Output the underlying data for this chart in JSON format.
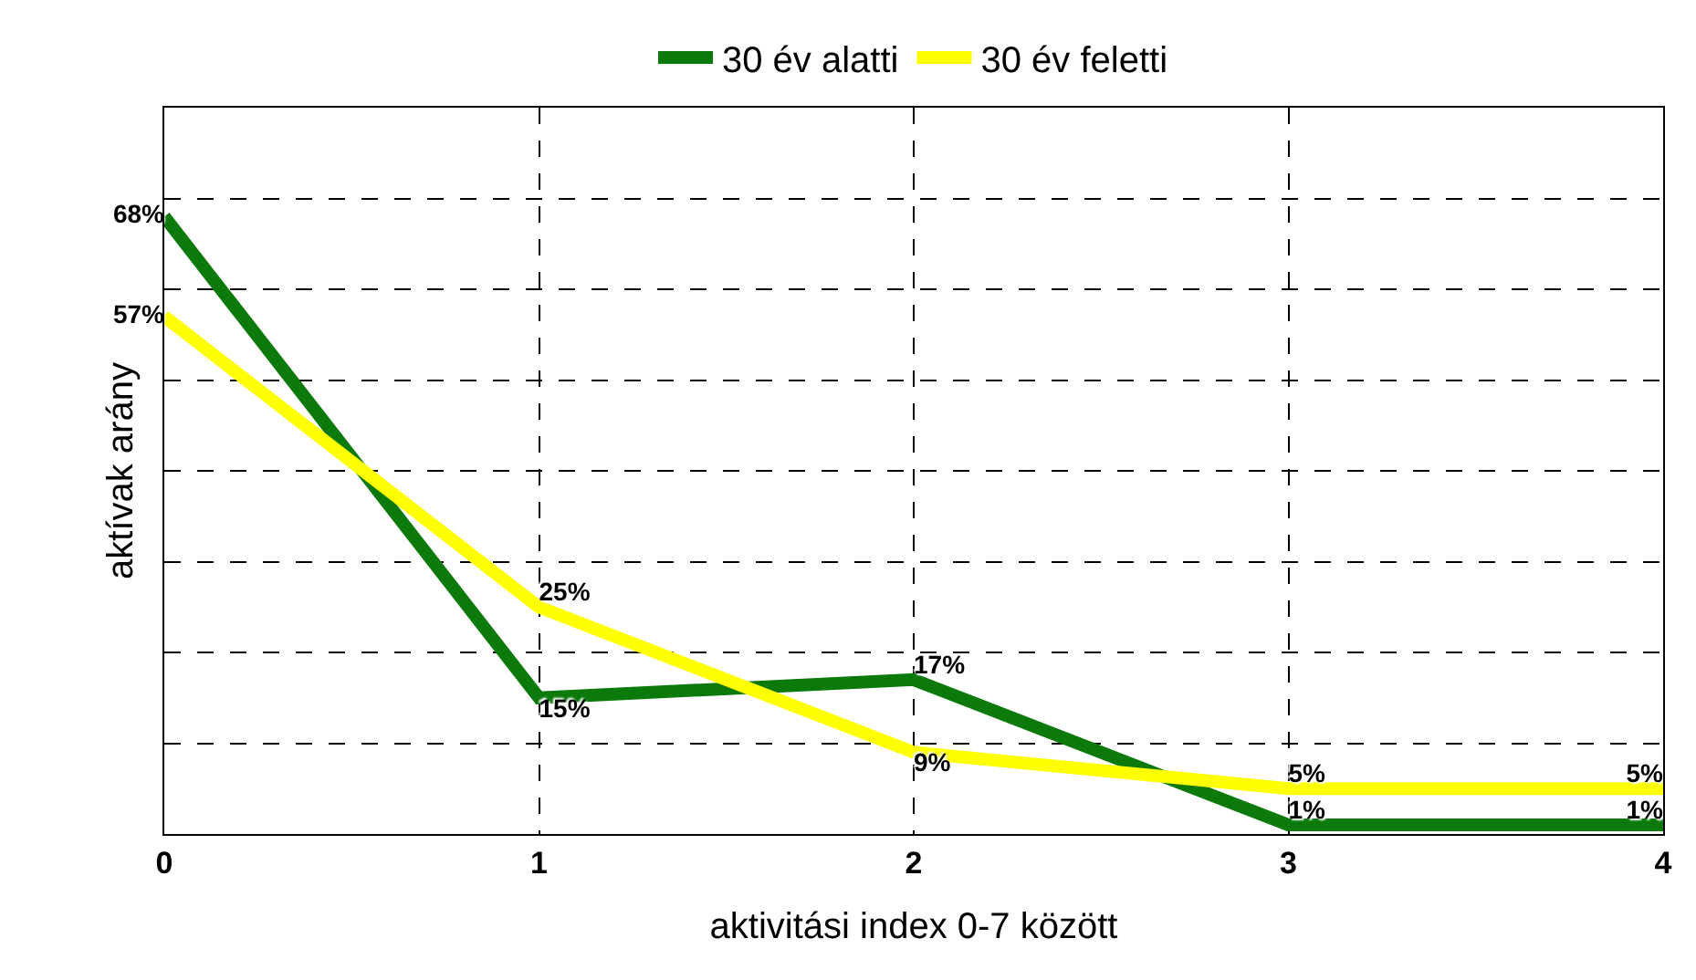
{
  "chart_data": {
    "type": "line",
    "xlabel": "aktivitási index 0-7 között",
    "ylabel": "aktívak arány",
    "x": [
      0,
      1,
      2,
      3,
      4
    ],
    "series": [
      {
        "name": "30 év alatti",
        "color": "#0b7a0b",
        "values": [
          68,
          15,
          17,
          1,
          1
        ],
        "value_labels": [
          "68%",
          "15%",
          "17%",
          "1%",
          "1%"
        ]
      },
      {
        "name": "30 év feletti",
        "color": "#ffff00",
        "values": [
          57,
          25,
          9,
          5,
          5
        ],
        "value_labels": [
          "57%",
          "25%",
          "9%",
          "5%",
          "5%"
        ]
      }
    ],
    "xlim": [
      0,
      4
    ],
    "xticks": [
      0,
      1,
      2,
      3,
      4
    ],
    "ylim": [
      0,
      80
    ],
    "yticks": [
      {
        "value": 0,
        "label": null
      },
      {
        "value": 10,
        "label": null
      },
      {
        "value": 20,
        "label": null
      },
      {
        "value": 30,
        "label": null
      },
      {
        "value": 40,
        "label": null
      },
      {
        "value": 50,
        "label": null
      },
      {
        "value": 60,
        "label": null
      },
      {
        "value": 70,
        "label": null
      },
      {
        "value": 80,
        "label": null
      }
    ],
    "tick_labels": "x",
    "grid": true,
    "legend": "top",
    "marker": "none",
    "line_style": "solid"
  }
}
